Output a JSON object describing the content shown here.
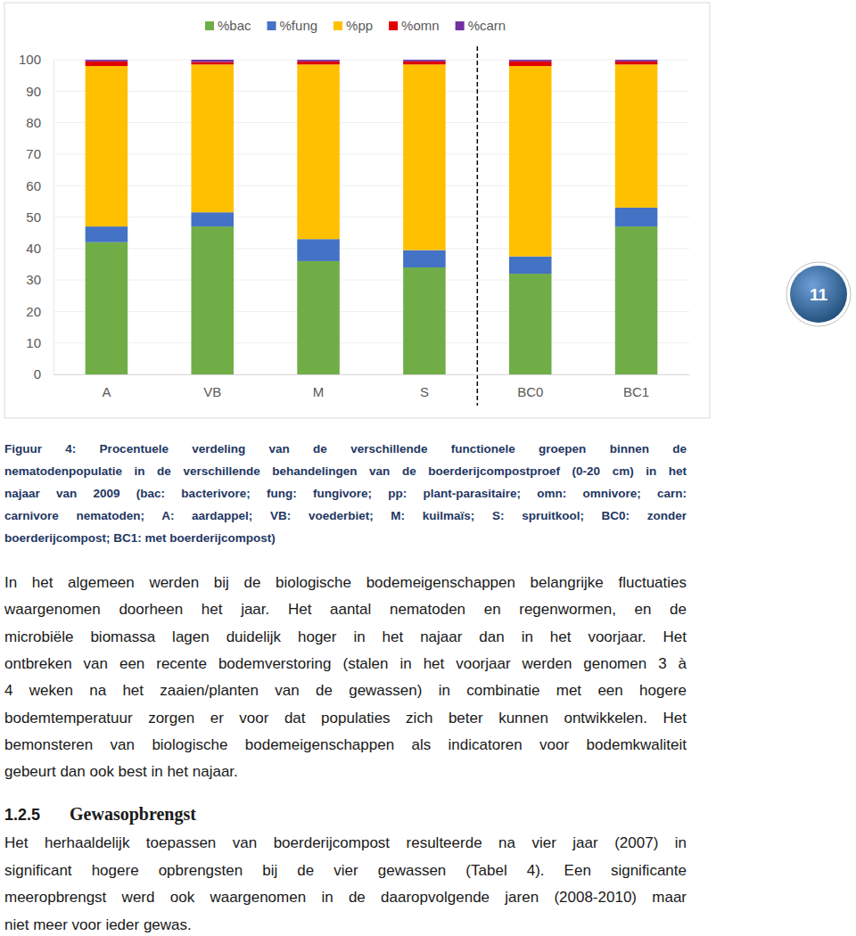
{
  "chart_data": {
    "type": "bar",
    "stacked": true,
    "grid": true,
    "categories": [
      "A",
      "VB",
      "M",
      "S",
      "BC0",
      "BC1"
    ],
    "series": [
      {
        "name": "%bac",
        "color": "#70ad47",
        "values": [
          42,
          47,
          36,
          34,
          32,
          47
        ]
      },
      {
        "name": "%fung",
        "color": "#4472c4",
        "values": [
          5,
          4.5,
          7,
          5.5,
          5.5,
          6
        ]
      },
      {
        "name": "%pp",
        "color": "#ffc000",
        "values": [
          51,
          47,
          55.5,
          59,
          60.5,
          45.5
        ]
      },
      {
        "name": "%omn",
        "color": "#e00000",
        "values": [
          1.5,
          0.8,
          1,
          1,
          1.5,
          1
        ]
      },
      {
        "name": "%carn",
        "color": "#7030a0",
        "values": [
          0.5,
          0.7,
          0.5,
          0.5,
          0.5,
          0.5
        ]
      }
    ],
    "ylim": [
      0,
      100
    ],
    "yticks": [
      0,
      10,
      20,
      30,
      40,
      50,
      60,
      70,
      80,
      90,
      100
    ]
  },
  "page_number": "11",
  "caption": {
    "lines": [
      "Figuur 4: Procentuele verdeling van de verschillende functionele groepen binnen de",
      "nematodenpopulatie in de verschillende behandelingen van de boerderijcompostproef (0-20 cm) in het",
      "najaar van 2009 (bac: bacterivore; fung: fungivore; pp: plant-parasitaire; omn: omnivore; carn:",
      "carnivore nematoden; A: aardappel; VB: voederbiet; M: kuilmaïs; S: spruitkool; BC0: zonder",
      "boerderijcompost; BC1: met boerderijcompost)"
    ]
  },
  "paragraphs": [
    {
      "lines": [
        "In het algemeen werden bij de biologische bodemeigenschappen belangrijke fluctuaties",
        "waargenomen doorheen het jaar. Het aantal nematoden en regenwormen, en de",
        "microbiële biomassa lagen duidelijk hoger in het najaar dan in het voorjaar. Het",
        "ontbreken van een recente bodemverstoring (stalen in het voorjaar werden genomen 3 à",
        "4 weken na het zaaien/planten van de gewassen) in combinatie met een hogere",
        "bodemtemperatuur zorgen er voor dat populaties zich beter kunnen ontwikkelen. Het",
        "bemonsteren van biologische bodemeigenschappen als indicatoren voor bodemkwaliteit",
        "gebeurt dan ook best in het najaar."
      ]
    },
    {
      "lines": [
        "Het herhaaldelijk toepassen van boerderijcompost resulteerde na vier jaar (2007) in",
        "significant hogere opbrengsten bij de vier gewassen (Tabel 4). Een significante",
        "meeropbrengst werd ook waargenomen in de daaropvolgende jaren (2008-2010) maar",
        "niet meer voor ieder gewas."
      ]
    }
  ],
  "heading": {
    "number": "1.2.5",
    "title": "Gewasopbrengst"
  }
}
